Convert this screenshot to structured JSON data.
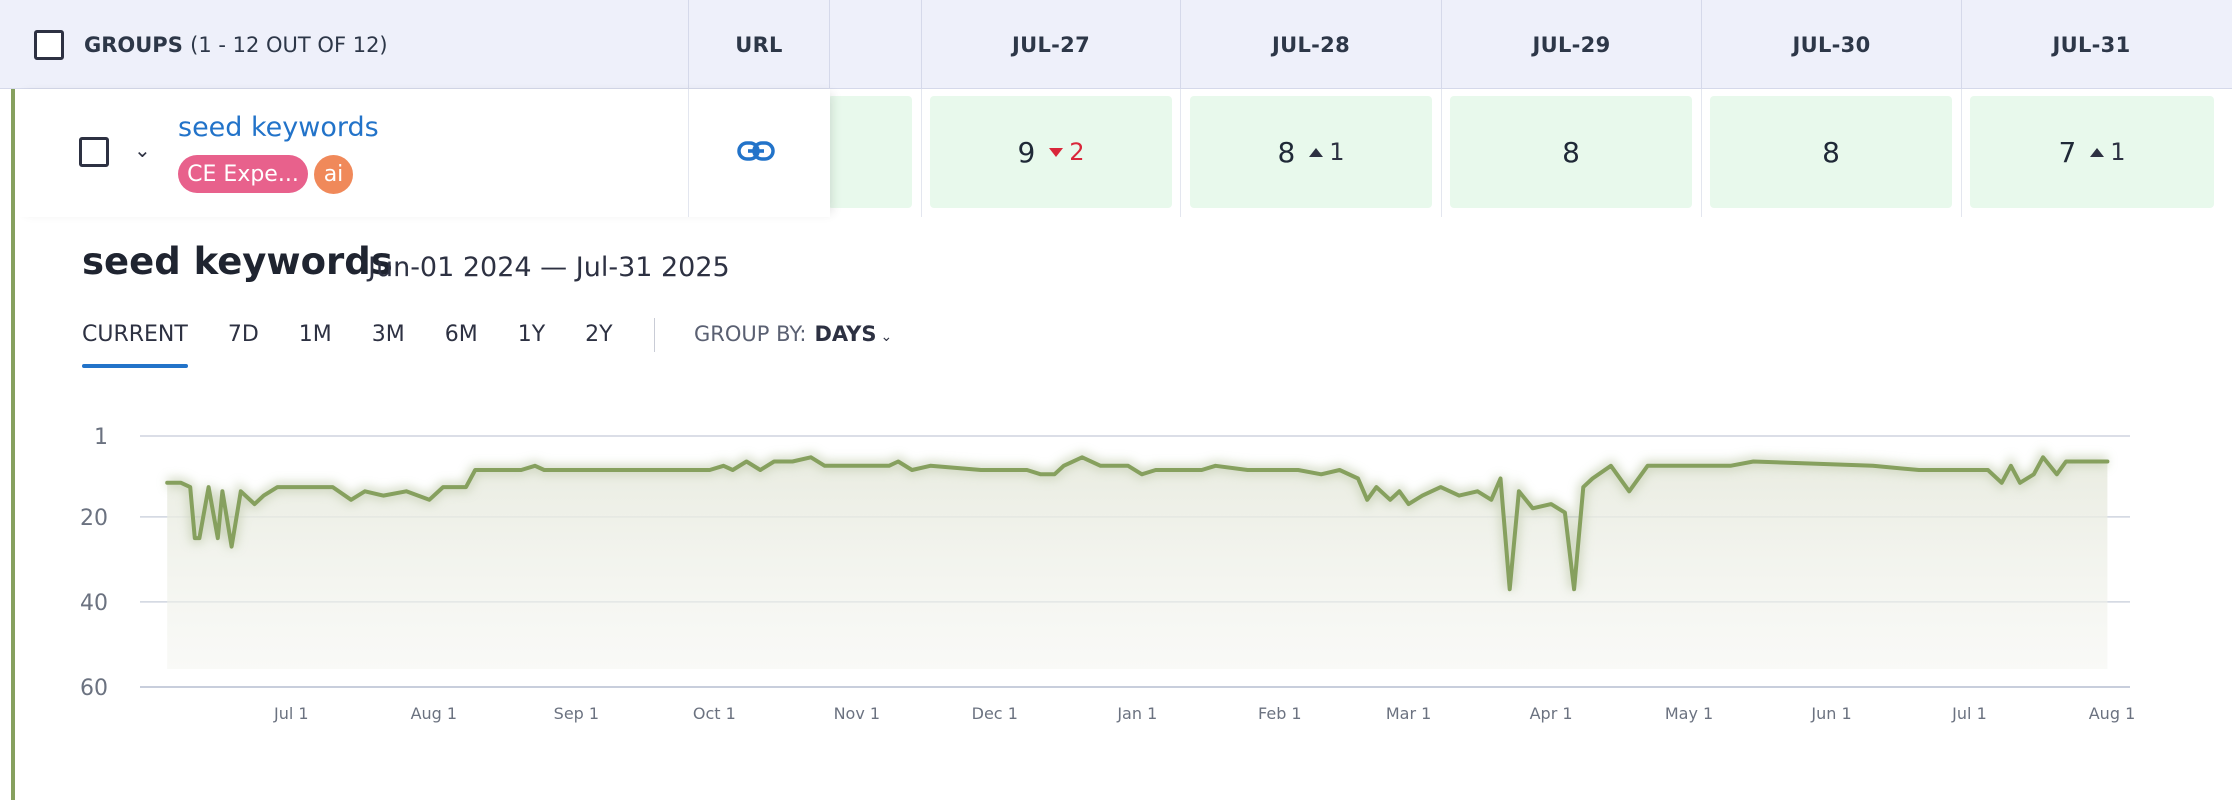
{
  "header": {
    "groups_label": "GROUPS",
    "groups_count": "(1 - 12 OUT OF 12)",
    "url_label": "URL",
    "dates": [
      "JUL-27",
      "JUL-28",
      "JUL-29",
      "JUL-30",
      "JUL-31"
    ]
  },
  "row": {
    "name": "seed keywords",
    "tags": [
      "CE Expe...",
      "ai"
    ],
    "link_icon": "link-icon",
    "cells": [
      {
        "value": "9",
        "change": "2",
        "direction": "down"
      },
      {
        "value": "8",
        "change": "1",
        "direction": "up"
      },
      {
        "value": "8",
        "change": "",
        "direction": ""
      },
      {
        "value": "8",
        "change": "",
        "direction": ""
      },
      {
        "value": "7",
        "change": "1",
        "direction": "up"
      }
    ]
  },
  "panel": {
    "title": "seed keywords",
    "date_range": "Jun-01 2024 — Jul-31 2025",
    "tabs": [
      "CURRENT",
      "7D",
      "1M",
      "3M",
      "6M",
      "1Y",
      "2Y"
    ],
    "active_tab": "CURRENT",
    "group_by_label": "GROUP BY:",
    "group_by_value": "DAYS"
  },
  "colors": {
    "line": "#86a05e",
    "accent": "#2273c9",
    "cell_bg": "#e8f9ec"
  },
  "chart_data": {
    "type": "line",
    "y_inverted": true,
    "ylim": [
      1,
      60
    ],
    "y_ticks": [
      "1",
      "20",
      "40",
      "60"
    ],
    "x_ticks": [
      "Jul 1",
      "Aug 1",
      "Sep 1",
      "Oct 1",
      "Nov 1",
      "Dec 1",
      "Jan 1",
      "Feb 1",
      "Mar 1",
      "Apr 1",
      "May 1",
      "Jun 1",
      "Jul 1",
      "Aug 1"
    ],
    "series": [
      {
        "name": "",
        "points": [
          [
            "2024-06-04",
            12
          ],
          [
            "2024-06-07",
            12
          ],
          [
            "2024-06-09",
            13
          ],
          [
            "2024-06-10",
            25
          ],
          [
            "2024-06-11",
            25
          ],
          [
            "2024-06-13",
            13
          ],
          [
            "2024-06-15",
            25
          ],
          [
            "2024-06-16",
            14
          ],
          [
            "2024-06-18",
            27
          ],
          [
            "2024-06-20",
            14
          ],
          [
            "2024-06-23",
            17
          ],
          [
            "2024-06-25",
            15
          ],
          [
            "2024-06-28",
            13
          ],
          [
            "2024-07-10",
            13
          ],
          [
            "2024-07-14",
            16
          ],
          [
            "2024-07-17",
            14
          ],
          [
            "2024-07-21",
            15
          ],
          [
            "2024-07-26",
            14
          ],
          [
            "2024-07-31",
            16
          ],
          [
            "2024-08-03",
            13
          ],
          [
            "2024-08-08",
            13
          ],
          [
            "2024-08-10",
            9
          ],
          [
            "2024-08-20",
            9
          ],
          [
            "2024-08-23",
            8
          ],
          [
            "2024-08-25",
            9
          ],
          [
            "2024-09-30",
            9
          ],
          [
            "2024-10-03",
            8
          ],
          [
            "2024-10-05",
            9
          ],
          [
            "2024-10-08",
            7
          ],
          [
            "2024-10-11",
            9
          ],
          [
            "2024-10-14",
            7
          ],
          [
            "2024-10-18",
            7
          ],
          [
            "2024-10-22",
            6
          ],
          [
            "2024-10-25",
            8
          ],
          [
            "2024-11-08",
            8
          ],
          [
            "2024-11-10",
            7
          ],
          [
            "2024-11-13",
            9
          ],
          [
            "2024-11-17",
            8
          ],
          [
            "2024-11-28",
            9
          ],
          [
            "2024-12-08",
            9
          ],
          [
            "2024-12-11",
            10
          ],
          [
            "2024-12-14",
            10
          ],
          [
            "2024-12-16",
            8
          ],
          [
            "2024-12-20",
            6
          ],
          [
            "2024-12-24",
            8
          ],
          [
            "2024-12-30",
            8
          ],
          [
            "2025-01-02",
            10
          ],
          [
            "2025-01-05",
            9
          ],
          [
            "2025-01-15",
            9
          ],
          [
            "2025-01-18",
            8
          ],
          [
            "2025-01-25",
            9
          ],
          [
            "2025-02-05",
            9
          ],
          [
            "2025-02-10",
            10
          ],
          [
            "2025-02-14",
            9
          ],
          [
            "2025-02-18",
            11
          ],
          [
            "2025-02-20",
            16
          ],
          [
            "2025-02-22",
            13
          ],
          [
            "2025-02-25",
            16
          ],
          [
            "2025-02-27",
            14
          ],
          [
            "2025-03-01",
            17
          ],
          [
            "2025-03-04",
            15
          ],
          [
            "2025-03-08",
            13
          ],
          [
            "2025-03-12",
            15
          ],
          [
            "2025-03-16",
            14
          ],
          [
            "2025-03-19",
            16
          ],
          [
            "2025-03-21",
            11
          ],
          [
            "2025-03-23",
            37
          ],
          [
            "2025-03-25",
            14
          ],
          [
            "2025-03-28",
            18
          ],
          [
            "2025-04-01",
            17
          ],
          [
            "2025-04-04",
            19
          ],
          [
            "2025-04-06",
            37
          ],
          [
            "2025-04-08",
            13
          ],
          [
            "2025-04-10",
            11
          ],
          [
            "2025-04-14",
            8
          ],
          [
            "2025-04-18",
            14
          ],
          [
            "2025-04-22",
            8
          ],
          [
            "2025-05-10",
            8
          ],
          [
            "2025-05-15",
            7
          ],
          [
            "2025-06-10",
            8
          ],
          [
            "2025-06-20",
            9
          ],
          [
            "2025-07-05",
            9
          ],
          [
            "2025-07-08",
            12
          ],
          [
            "2025-07-10",
            8
          ],
          [
            "2025-07-12",
            12
          ],
          [
            "2025-07-15",
            10
          ],
          [
            "2025-07-17",
            6
          ],
          [
            "2025-07-20",
            10
          ],
          [
            "2025-07-22",
            7
          ],
          [
            "2025-07-31",
            7
          ]
        ]
      }
    ]
  }
}
